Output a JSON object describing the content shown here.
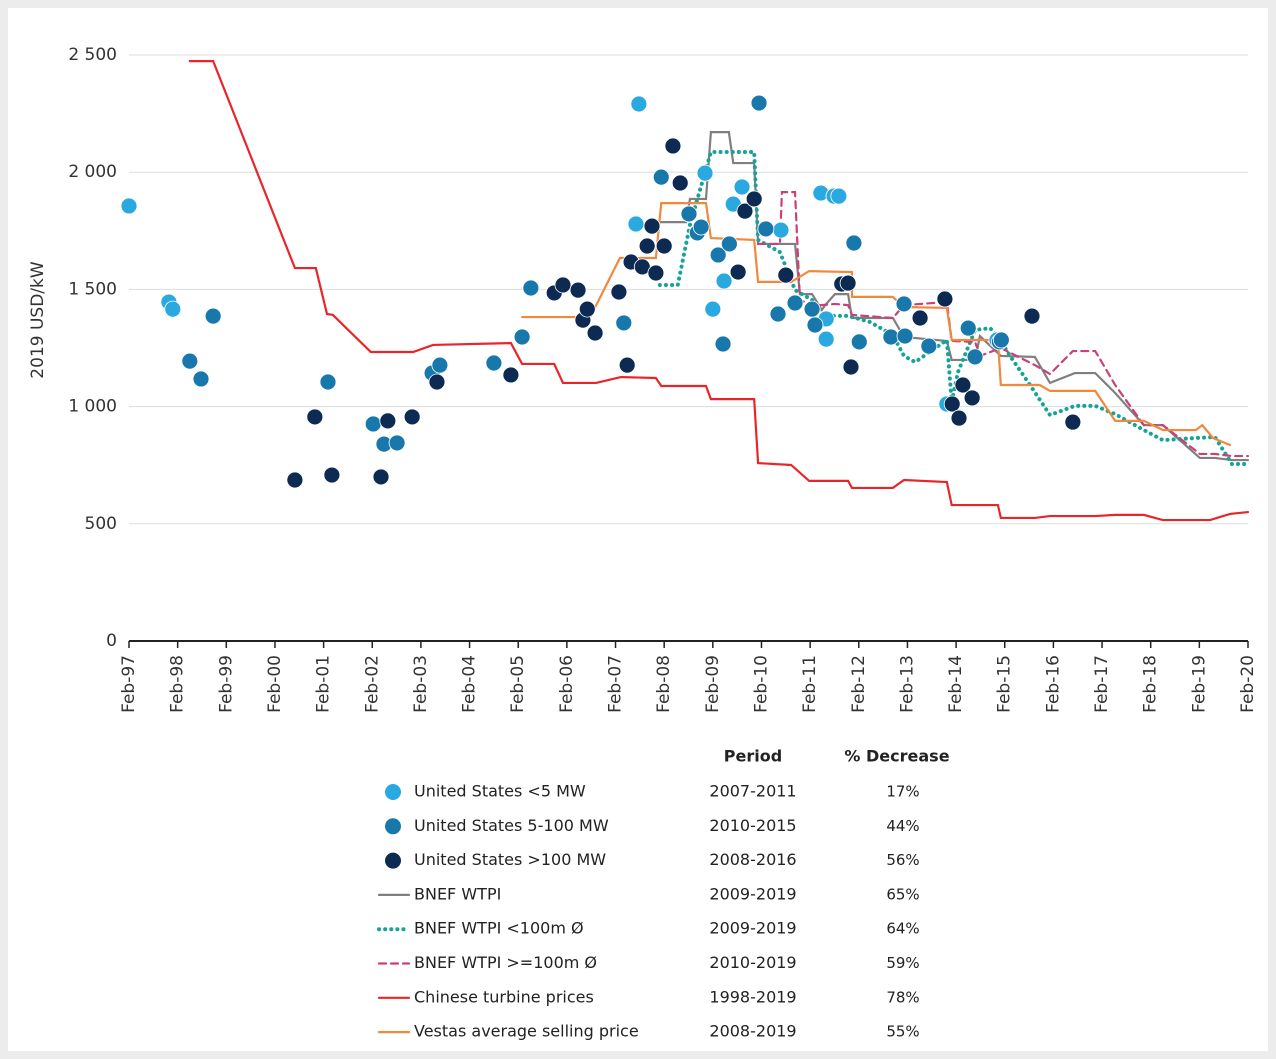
{
  "chart_data": {
    "type": "scatter",
    "ylabel": "2019 USD/kW",
    "xlim": [
      1997.08,
      2020.08
    ],
    "ylim": [
      0,
      2500
    ],
    "yticks": [
      0,
      500,
      {
        "value": 1000,
        "label": "1 000"
      },
      {
        "value": 1500,
        "label": "1 500"
      },
      {
        "value": 2000,
        "label": "2 000"
      },
      {
        "value": 2500,
        "label": "2 500"
      }
    ],
    "xticks": [
      {
        "value": 1997.08,
        "label": "Feb-97"
      },
      {
        "value": 1998.08,
        "label": "Feb-98"
      },
      {
        "value": 1999.08,
        "label": "Feb-99"
      },
      {
        "value": 2000.08,
        "label": "Feb-00"
      },
      {
        "value": 2001.08,
        "label": "Feb-01"
      },
      {
        "value": 2002.08,
        "label": "Feb-02"
      },
      {
        "value": 2003.08,
        "label": "Feb-03"
      },
      {
        "value": 2004.08,
        "label": "Feb-04"
      },
      {
        "value": 2005.08,
        "label": "Feb-05"
      },
      {
        "value": 2006.08,
        "label": "Feb-06"
      },
      {
        "value": 2007.08,
        "label": "Feb-07"
      },
      {
        "value": 2008.08,
        "label": "Feb-08"
      },
      {
        "value": 2009.08,
        "label": "Feb-09"
      },
      {
        "value": 2010.08,
        "label": "Feb-10"
      },
      {
        "value": 2011.08,
        "label": "Feb-11"
      },
      {
        "value": 2012.08,
        "label": "Feb-12"
      },
      {
        "value": 2013.08,
        "label": "Feb-13"
      },
      {
        "value": 2014.08,
        "label": "Feb-14"
      },
      {
        "value": 2015.08,
        "label": "Feb-15"
      },
      {
        "value": 2016.08,
        "label": "Feb-16"
      },
      {
        "value": 2017.08,
        "label": "Feb-17"
      },
      {
        "value": 2018.08,
        "label": "Feb-18"
      },
      {
        "value": 2019.08,
        "label": "Feb-19"
      },
      {
        "value": 2020.08,
        "label": "Feb-20"
      }
    ],
    "grid": true,
    "legend_headers": [
      "Period",
      "% Decrease"
    ],
    "series": [
      {
        "name": "United States <5 MW",
        "type": "scatter",
        "color": "#2aa9e0",
        "period": "2007-2011",
        "decrease": "17%",
        "x": [
          1997.08,
          1997.9,
          1997.98,
          2007.56,
          2007.5,
          2008.92,
          2009.08,
          2009.31,
          2009.5,
          2009.68,
          2010.48,
          2011.3,
          2011.57,
          2011.67,
          2011.41,
          2011.41,
          2013.89,
          2014.92
        ],
        "values": [
          1856,
          1446,
          1416,
          2291,
          1779,
          1996,
          1416,
          1536,
          1864,
          1937,
          1753,
          1911,
          1898,
          1898,
          1374,
          1288,
          1011,
          1284
        ]
      },
      {
        "name": "United States 5-100 MW",
        "type": "scatter",
        "color": "#1878ab",
        "period": "2010-2015",
        "decrease": "44%",
        "x": [
          1998.33,
          1998.56,
          1998.81,
          2001.17,
          2002.1,
          2002.32,
          2002.59,
          2003.31,
          2003.47,
          2004.58,
          2005.16,
          2005.34,
          2007.25,
          2008.02,
          2008.59,
          2008.76,
          2008.84,
          2009.19,
          2009.29,
          2009.42,
          2010.03,
          2010.17,
          2010.42,
          2010.77,
          2011.12,
          2011.18,
          2011.98,
          2012.09,
          2012.74,
          2013.03,
          2013.01,
          2013.52,
          2014.33,
          2014.47,
          2014.97,
          2015.01
        ],
        "values": [
          1194,
          1118,
          1386,
          1105,
          926,
          840,
          845,
          1143,
          1177,
          1186,
          1297,
          1506,
          1357,
          1979,
          1822,
          1741,
          1766,
          1647,
          1267,
          1694,
          2295,
          1758,
          1395,
          1442,
          1416,
          1348,
          1698,
          1276,
          1297,
          1301,
          1438,
          1258,
          1335,
          1212,
          1276,
          1284
        ]
      },
      {
        "name": "United States >100 MW",
        "type": "scatter",
        "color": "#0c2a52",
        "period": "2008-2016",
        "decrease": "56%",
        "x": [
          2000.49,
          2000.9,
          2001.25,
          2002.26,
          2002.4,
          2002.9,
          2003.41,
          2004.93,
          2005.82,
          2006.0,
          2006.31,
          2006.41,
          2006.5,
          2006.66,
          2007.15,
          2007.32,
          2007.4,
          2007.63,
          2007.73,
          2007.83,
          2007.91,
          2008.08,
          2008.26,
          2008.41,
          2009.6,
          2009.74,
          2009.93,
          2010.58,
          2011.73,
          2011.86,
          2011.92,
          2013.34,
          2013.85,
          2014.0,
          2014.14,
          2014.22,
          2014.41,
          2015.64,
          2016.48
        ],
        "values": [
          687,
          956,
          708,
          700,
          939,
          956,
          1105,
          1135,
          1485,
          1519,
          1497,
          1369,
          1416,
          1314,
          1489,
          1177,
          1617,
          1596,
          1685,
          1770,
          1570,
          1685,
          2112,
          1954,
          1574,
          1834,
          1886,
          1561,
          1523,
          1527,
          1169,
          1378,
          1459,
          1011,
          951,
          1092,
          1037,
          1386,
          934
        ]
      },
      {
        "name": "BNEF WTPI",
        "type": "line",
        "style": "solid",
        "color": "#7f7f7f",
        "period": "2009-2019",
        "decrease": "65%",
        "x": [
          2007.99,
          2008.53,
          2008.61,
          2008.94,
          2009.04,
          2009.41,
          2009.5,
          2009.93,
          2010.01,
          2010.77,
          2010.87,
          2011.12,
          2011.32,
          2011.39,
          2011.59,
          2011.86,
          2011.94,
          2012.78,
          2013.01,
          2013.89,
          2013.99,
          2014.47,
          2014.57,
          2015.0,
          2015.7,
          2016.01,
          2016.52,
          2016.94,
          2017.35,
          2017.94,
          2018.33,
          2019.09,
          2019.4,
          2019.75,
          2020.08
        ],
        "values": [
          1787,
          1787,
          1886,
          1886,
          2171,
          2171,
          2039,
          2039,
          1694,
          1694,
          1480,
          1480,
          1412,
          1433,
          1480,
          1480,
          1378,
          1378,
          1297,
          1280,
          1199,
          1199,
          1301,
          1216,
          1212,
          1101,
          1143,
          1143,
          1058,
          921,
          921,
          781,
          781,
          772,
          772
        ]
      },
      {
        "name": "BNEF WTPI <100m Ø",
        "type": "line",
        "style": "dotted",
        "color": "#17a398",
        "period": "2009-2019",
        "decrease": "64%",
        "x": [
          2007.99,
          2008.36,
          2008.61,
          2009.04,
          2009.93,
          2010.01,
          2010.46,
          2010.77,
          2011.12,
          2011.32,
          2011.86,
          2012.31,
          2012.78,
          2013.01,
          2013.24,
          2013.89,
          2013.99,
          2014.12,
          2014.47,
          2014.78,
          2015.0,
          2015.19,
          2015.6,
          2016.01,
          2016.52,
          2016.94,
          2017.35,
          2017.94,
          2018.33,
          2019.01,
          2019.4,
          2019.75,
          2020.08
        ],
        "values": [
          1519,
          1519,
          1775,
          2086,
          2086,
          1711,
          1659,
          1497,
          1455,
          1387,
          1387,
          1361,
          1305,
          1216,
          1190,
          1284,
          1020,
          1148,
          1327,
          1335,
          1280,
          1216,
          1092,
          964,
          1003,
          1003,
          968,
          900,
          857,
          866,
          870,
          755,
          755
        ]
      },
      {
        "name": "BNEF WTPI >=100m Ø",
        "type": "line",
        "style": "dashed",
        "color": "#c8417a",
        "period": "2010-2019",
        "decrease": "59%",
        "x": [
          2010.01,
          2010.46,
          2010.5,
          2010.77,
          2010.87,
          2011.12,
          2011.32,
          2011.59,
          2011.86,
          2011.94,
          2012.78,
          2013.01,
          2013.89,
          2013.99,
          2014.47,
          2014.57,
          2015.0,
          2015.7,
          2016.01,
          2016.48,
          2016.94,
          2017.35,
          2017.94,
          2018.33,
          2019.09,
          2019.4,
          2019.75,
          2020.08
        ],
        "values": [
          1694,
          1694,
          1915,
          1915,
          1455,
          1433,
          1433,
          1438,
          1433,
          1391,
          1378,
          1433,
          1446,
          1280,
          1276,
          1216,
          1250,
          1177,
          1139,
          1237,
          1237,
          1092,
          921,
          921,
          798,
          798,
          789,
          789
        ]
      },
      {
        "name": "Chinese turbine prices",
        "type": "line",
        "style": "solid",
        "color": "#e8262a",
        "period": "1998-2019",
        "decrease": "78%",
        "x": [
          1998.33,
          1998.81,
          2000.49,
          2000.92,
          2001.15,
          2001.27,
          2002.05,
          2002.92,
          2003.33,
          2004.93,
          2005.16,
          2005.82,
          2006.0,
          2006.68,
          2007.19,
          2007.91,
          2008.02,
          2008.94,
          2009.04,
          2009.93,
          2010.01,
          2010.69,
          2011.06,
          2011.86,
          2011.94,
          2012.78,
          2013.01,
          2013.89,
          2013.99,
          2014.94,
          2015.0,
          2015.7,
          2016.01,
          2016.94,
          2017.35,
          2017.94,
          2018.33,
          2019.3,
          2019.71,
          2020.08
        ],
        "values": [
          2474,
          2474,
          1591,
          1591,
          1395,
          1391,
          1233,
          1233,
          1263,
          1271,
          1182,
          1182,
          1101,
          1101,
          1126,
          1122,
          1088,
          1088,
          1032,
          1032,
          759,
          751,
          683,
          683,
          653,
          653,
          687,
          678,
          580,
          580,
          525,
          525,
          533,
          533,
          538,
          538,
          516,
          516,
          542,
          550
        ]
      },
      {
        "name": "Vestas average selling price",
        "type": "line",
        "style": "solid",
        "color": "#f0883e",
        "period": "2008-2019",
        "decrease": "55%",
        "x": [
          2005.16,
          2006.56,
          2007.17,
          2007.91,
          2008.02,
          2008.94,
          2009.04,
          2009.93,
          2010.01,
          2010.69,
          2011.06,
          2011.94,
          2011.94,
          2012.78,
          2013.01,
          2013.89,
          2013.99,
          2014.94,
          2015.0,
          2015.8,
          2016.01,
          2016.94,
          2017.35,
          2017.94,
          2018.33,
          2019.01,
          2019.14,
          2019.36,
          2019.71
        ],
        "values": [
          1382,
          1382,
          1634,
          1634,
          1868,
          1868,
          1719,
          1711,
          1532,
          1532,
          1578,
          1574,
          1468,
          1468,
          1425,
          1421,
          1284,
          1284,
          1092,
          1092,
          1067,
          1067,
          939,
          939,
          900,
          900,
          921,
          866,
          836
        ]
      }
    ]
  }
}
